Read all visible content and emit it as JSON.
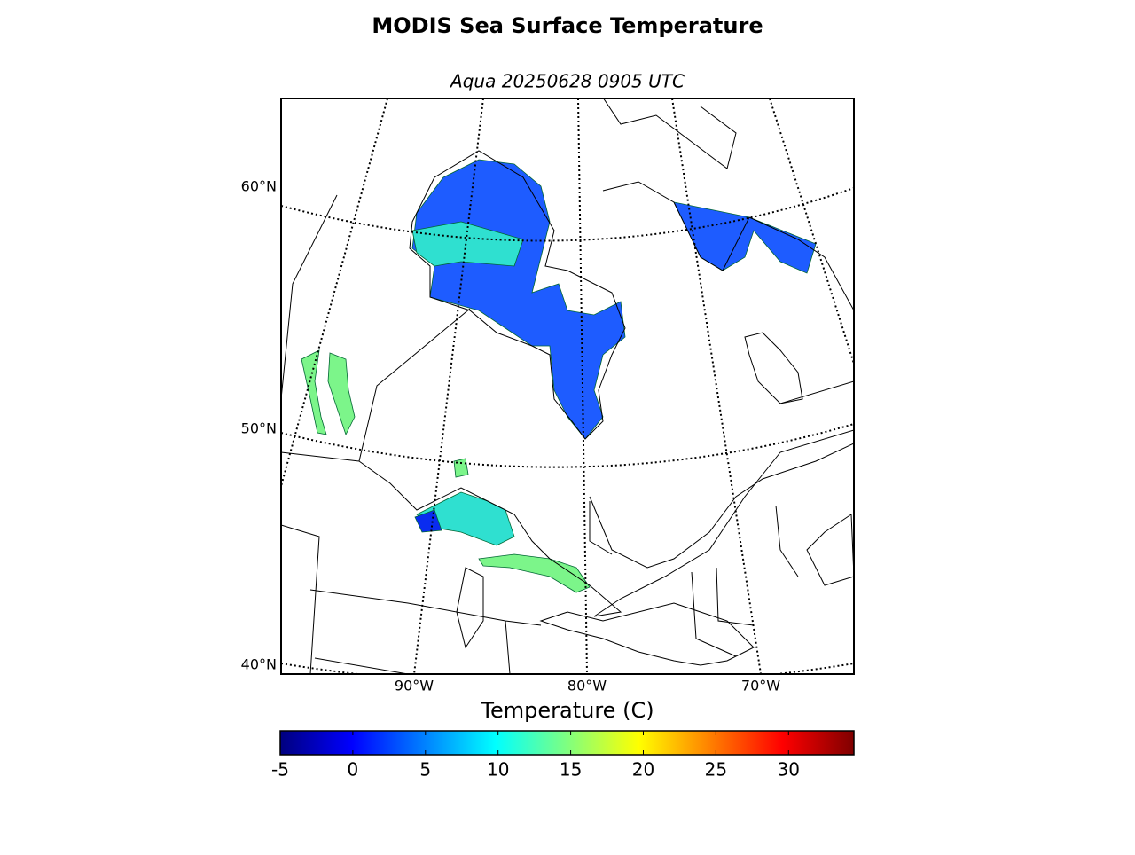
{
  "title": "MODIS Sea Surface Temperature",
  "subtitle": "Aqua 20250628 0905 UTC",
  "map": {
    "lat_labels": [
      "60°N",
      "50°N",
      "40°N"
    ],
    "lon_labels": [
      "90°W",
      "80°W",
      "70°W"
    ]
  },
  "colorbar": {
    "label": "Temperature (C)",
    "colormap": "jet",
    "range": [
      -5,
      34.5
    ],
    "ticks": [
      -5,
      0,
      5,
      10,
      15,
      20,
      25,
      30
    ]
  }
}
